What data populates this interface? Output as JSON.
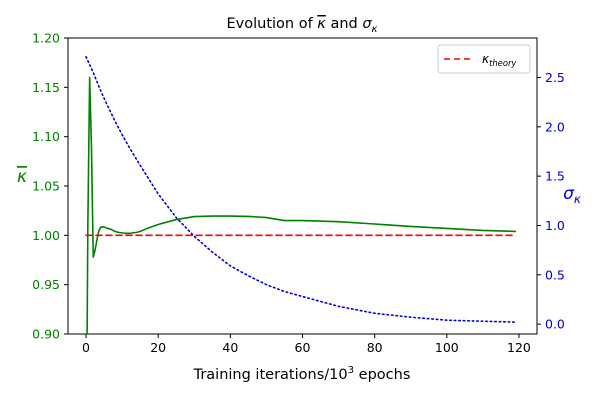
{
  "chart_data": {
    "type": "line",
    "title": {
      "prefix": "Evolution of ",
      "kappa_bar": "κ",
      "conj": " and ",
      "sigma": "σ",
      "sigma_sub": "κ"
    },
    "xlabel": {
      "base": "Training iterations/10",
      "exp": "3",
      "suffix": " epochs"
    },
    "ylabel_left": "κ",
    "ylabel_right": {
      "base": "σ",
      "sub": "κ"
    },
    "xlim": [
      -5,
      125
    ],
    "ylim_left": [
      0.9,
      1.2
    ],
    "ylim_right": [
      -0.1,
      2.9
    ],
    "x_ticks": [
      "0",
      "20",
      "40",
      "60",
      "80",
      "100",
      "120"
    ],
    "y_left_ticks": [
      "0.90",
      "0.95",
      "1.00",
      "1.05",
      "1.10",
      "1.15",
      "1.20"
    ],
    "y_right_ticks": [
      "0.0",
      "0.5",
      "1.0",
      "1.5",
      "2.0",
      "2.5"
    ],
    "legend": {
      "placement": "top-right",
      "base": "κ",
      "sub": "theory"
    },
    "colors": {
      "kappa_mean": "#008000",
      "sigma": "#0000cc",
      "theory": "#ff0000",
      "left_axis": "#008000",
      "right_axis": "#0000cc"
    },
    "series": [
      {
        "id": "kappa_mean",
        "axis": "left",
        "style": "solid",
        "x": [
          0.3,
          0.5,
          1,
          1.5,
          2,
          2.5,
          3,
          3.5,
          4,
          4.5,
          5,
          6,
          7,
          8,
          9,
          10,
          11,
          12,
          13,
          14,
          15,
          17,
          20,
          25,
          30,
          35,
          40,
          45,
          50,
          55,
          60,
          70,
          80,
          90,
          100,
          110,
          119
        ],
        "y": [
          0.9,
          1.01,
          1.16,
          1.09,
          0.978,
          0.985,
          0.995,
          1.004,
          1.008,
          1.0085,
          1.0085,
          1.007,
          1.006,
          1.004,
          1.003,
          1.0025,
          1.002,
          1.002,
          1.0025,
          1.003,
          1.004,
          1.007,
          1.011,
          1.016,
          1.019,
          1.0195,
          1.0195,
          1.0192,
          1.018,
          1.015,
          1.015,
          1.0138,
          1.0115,
          1.009,
          1.007,
          1.005,
          1.004
        ]
      },
      {
        "id": "sigma",
        "axis": "right",
        "style": "dotted",
        "x": [
          0,
          1,
          2,
          4,
          6,
          8,
          10,
          12,
          15,
          20,
          25,
          30,
          35,
          40,
          45,
          50,
          55,
          60,
          70,
          80,
          90,
          100,
          110,
          119
        ],
        "y": [
          2.71,
          2.63,
          2.55,
          2.37,
          2.21,
          2.06,
          1.92,
          1.79,
          1.61,
          1.32,
          1.08,
          0.89,
          0.73,
          0.59,
          0.49,
          0.4,
          0.33,
          0.28,
          0.18,
          0.11,
          0.07,
          0.04,
          0.03,
          0.02
        ]
      },
      {
        "id": "theory",
        "axis": "left",
        "style": "dashed",
        "x": [
          0,
          119
        ],
        "y": [
          1.0,
          1.0
        ]
      }
    ]
  }
}
